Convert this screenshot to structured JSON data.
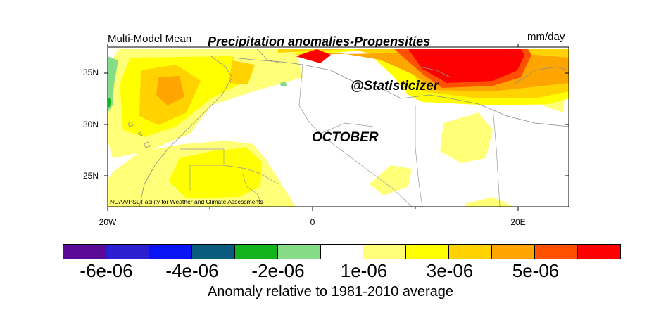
{
  "header": {
    "left_label": "Multi-Model Mean",
    "title": "Precipitation anomalies-Propensities",
    "units": "mm/day"
  },
  "map": {
    "month": "OCTOBER",
    "watermark": "@Statisticizer",
    "credit": "NOAA/PSL Facility for Weather and Climate Assessments",
    "lat_labels": [
      "35N",
      "30N",
      "25N"
    ],
    "lon_labels": [
      "20W",
      "0",
      "20E"
    ]
  },
  "colorbar": {
    "colors": [
      "#5a0a96",
      "#2b1fd0",
      "#0a14f5",
      "#0a5c7f",
      "#14b41e",
      "#86dc86",
      "#ffffff",
      "#ffff78",
      "#ffff00",
      "#ffd200",
      "#ffa500",
      "#ff5000",
      "#ff0000"
    ],
    "tick_labels": [
      "-6e-06",
      "-4e-06",
      "-2e-06",
      "1e-06",
      "3e-06",
      "5e-06"
    ],
    "caption": "Anomaly relative to 1981-2010 average"
  }
}
